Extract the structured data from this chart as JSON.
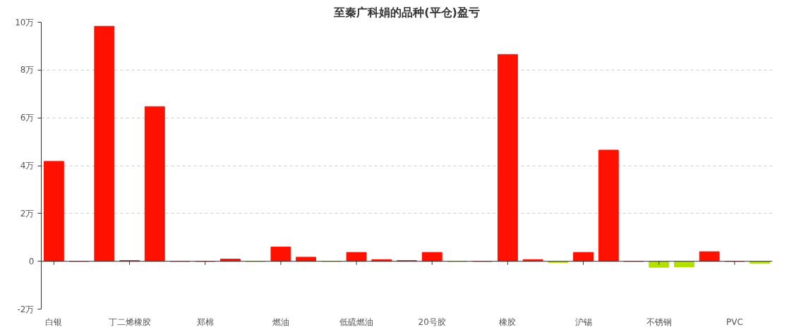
{
  "chart_data": {
    "type": "bar",
    "title": "至秦广科娟的品种(平仓)盈亏",
    "categories": [
      "白银",
      null,
      null,
      "丁二烯橡胶",
      null,
      null,
      "郑棉",
      null,
      null,
      "燃油",
      null,
      null,
      "低硫燃油",
      null,
      null,
      "20号胶",
      null,
      null,
      "橡胶",
      null,
      null,
      "沪锡",
      null,
      null,
      "不锈钢",
      null,
      null,
      "PVC",
      null
    ],
    "values": [
      4.18,
      0,
      9.83,
      0.03,
      6.47,
      0,
      0,
      0.09,
      -0.01,
      0.6,
      0.17,
      -0.01,
      0.37,
      0.07,
      0.03,
      0.37,
      -0.01,
      0,
      8.65,
      0.07,
      -0.05,
      0.37,
      4.65,
      0,
      -0.25,
      -0.23,
      0.4,
      0,
      -0.09
    ],
    "colors": [
      "#ff1100",
      "#ff1100",
      "#ff1100",
      "#ff1100",
      "#ff1100",
      "#ff1100",
      "#ff1100",
      "#ff1100",
      "#b3e000",
      "#ff1100",
      "#ff1100",
      "#b3e000",
      "#ff1100",
      "#ff1100",
      "#ff1100",
      "#ff1100",
      "#b3e000",
      "#ff1100",
      "#ff1100",
      "#ff1100",
      "#b3e000",
      "#ff1100",
      "#ff1100",
      "#ff1100",
      "#b3e000",
      "#b3e000",
      "#ff1100",
      "#ff1100",
      "#b3e000"
    ],
    "ylim": [
      -2,
      10
    ],
    "yticks": [
      {
        "value": -2,
        "label": "-2万"
      },
      0,
      {
        "value": 2,
        "label": "2万"
      },
      {
        "value": 4,
        "label": "4万"
      },
      {
        "value": 6,
        "label": "6万"
      },
      {
        "value": 8,
        "label": "8万"
      },
      {
        "value": 10,
        "label": "10万"
      }
    ],
    "grid": "y"
  }
}
